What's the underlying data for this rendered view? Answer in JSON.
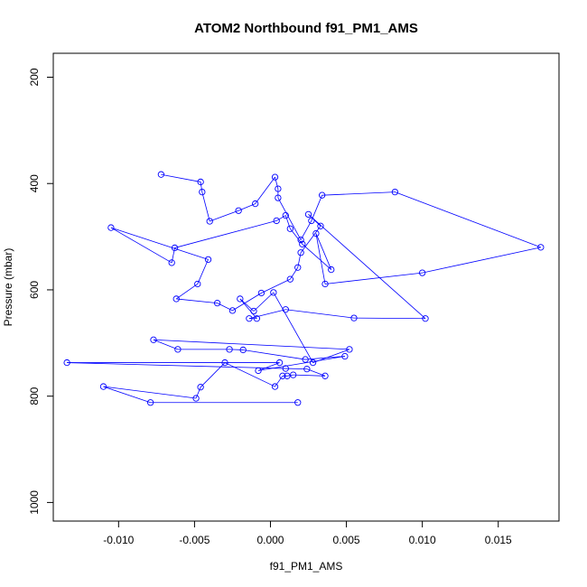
{
  "chart_data": {
    "type": "line",
    "title": "ATOM2 Northbound f91_PM1_AMS",
    "xlabel": "f91_PM1_AMS",
    "ylabel": "Pressure (mbar)",
    "xlim": [
      -0.0143,
      0.019
    ],
    "ylim": [
      1035,
      155
    ],
    "y_reversed": true,
    "x_ticks": [
      -0.01,
      -0.005,
      0.0,
      0.005,
      0.01,
      0.015
    ],
    "x_tick_labels": [
      "-0.010",
      "-0.005",
      "0.000",
      "0.005",
      "0.010",
      "0.015"
    ],
    "y_ticks": [
      200,
      400,
      600,
      800,
      1000
    ],
    "y_tick_labels": [
      "200",
      "400",
      "600",
      "800",
      "1000"
    ],
    "series_color": "#0000ff",
    "marker": "open-circle",
    "grid": false,
    "series": [
      {
        "x": [
          -0.0072,
          -0.0046,
          -0.0045,
          -0.004,
          -0.0021,
          -0.001,
          0.0003,
          0.0005,
          0.0005,
          0.002,
          0.0027,
          0.0034,
          0.0082,
          0.0178,
          0.01,
          0.0036,
          0.003,
          0.004,
          0.0021,
          0.0013,
          0.001,
          0.0004,
          -0.0063,
          -0.0065,
          -0.0105,
          -0.0041,
          -0.0048,
          -0.0062,
          -0.0035,
          -0.0025,
          -0.0006,
          0.0013,
          0.0018,
          0.002,
          0.0033,
          0.0025,
          0.0102,
          0.0055,
          0.001,
          -0.0014,
          -0.0009,
          -0.002,
          -0.0011,
          0.0002,
          0.0028,
          0.0052,
          -0.0077,
          -0.0061,
          -0.0027,
          -0.0018,
          0.0023,
          0.0049,
          -0.0008,
          0.0006,
          -0.0134,
          0.001,
          0.0024,
          0.0036,
          0.0015,
          0.0011,
          0.0008,
          0.0003,
          -0.003,
          -0.0046,
          -0.0049,
          -0.011,
          -0.0079,
          0.0018
        ],
        "y": [
          383,
          397,
          416,
          471,
          451,
          438,
          388,
          410,
          427,
          506,
          470,
          422,
          416,
          520,
          568,
          589,
          494,
          562,
          514,
          485,
          460,
          470,
          521,
          549,
          483,
          543,
          589,
          617,
          625,
          639,
          606,
          580,
          558,
          530,
          480,
          458,
          654,
          653,
          637,
          654,
          654,
          617,
          640,
          605,
          737,
          712,
          694,
          712,
          712,
          713,
          731,
          725,
          752,
          737,
          737,
          748,
          749,
          762,
          760,
          762,
          762,
          782,
          737,
          783,
          804,
          782,
          812,
          812
        ]
      }
    ]
  }
}
